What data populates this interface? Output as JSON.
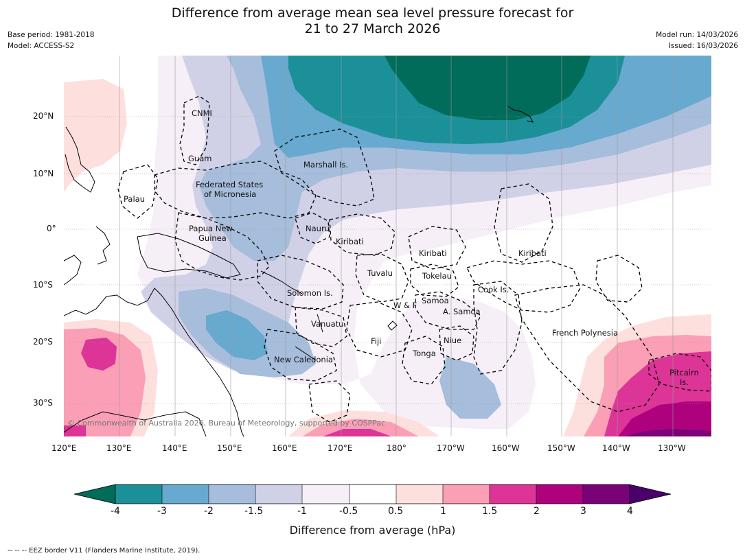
{
  "title_line1": "Difference from average mean sea level pressure forecast for",
  "title_line2": "21 to 27 March 2026",
  "meta_left": {
    "base_period": "Base period: 1981-2018",
    "model": "Model: ACCESS-S2"
  },
  "meta_right": {
    "model_run": "Model run: 14/03/2026",
    "issued": "Issued: 16/03/2026"
  },
  "axes": {
    "lat_ticks": [
      "20°N",
      "10°N",
      "0°",
      "10°S",
      "20°S",
      "30°S"
    ],
    "lon_ticks": [
      "120°E",
      "130°E",
      "140°E",
      "150°E",
      "160°E",
      "170°E",
      "180°",
      "170°W",
      "160°W",
      "150°W",
      "140°W",
      "130°W"
    ]
  },
  "places": {
    "cnmi": "CNMI",
    "guam": "Guam",
    "marshall": "Marshall Is.",
    "fsm1": "Federated States",
    "fsm2": "of Micronesia",
    "palau": "Palau",
    "png1": "Papua New",
    "png2": "Guinea",
    "nauru": "Nauru",
    "kiribati_w": "Kiribati",
    "kiribati_c": "Kiribati",
    "kiribati_e": "Kiribati",
    "tuvalu": "Tuvalu",
    "tokelau": "Tokelau",
    "solomon": "Solomon Is.",
    "cook": "Cook Is.",
    "wf": "W & F",
    "samoa": "Samoa",
    "asamoa": "A. Samoa",
    "vanuatu": "Vanuatu",
    "fiji": "Fiji",
    "niue": "Niue",
    "french_polynesia": "French Polynesia",
    "tonga": "Tonga",
    "new_caledonia": "New Caledonia",
    "pitcairn1": "Pitcairn",
    "pitcairn2": "Is."
  },
  "copyright": "© Commonwealth of Australia 2026, Bureau of Meteorology, supported by COSPPac",
  "colorbar": {
    "title": "Difference from average (hPa)",
    "labels": [
      "-4",
      "-3",
      "-2",
      "-1.5",
      "-1",
      "-0.5",
      "0.5",
      "1",
      "1.5",
      "2",
      "3",
      "4"
    ],
    "colors": {
      "lt_m4": "#016c59",
      "m4_m3": "#1c9099",
      "m3_m2": "#67a9cf",
      "m2_m15": "#a6bddb",
      "m15_m1": "#d0d1e6",
      "m1_m05": "#f6eff7",
      "m05_05": "#ffffff",
      "p05_1": "#fde0dd",
      "p1_15": "#fa9fb5",
      "p15_2": "#dd3497",
      "p2_3": "#ae017e",
      "p3_4": "#7a0177",
      "gt_4": "#49006a"
    }
  },
  "footer": "--  --  -- EEZ border V11 (Flanders Marine Institute, 2019)."
}
